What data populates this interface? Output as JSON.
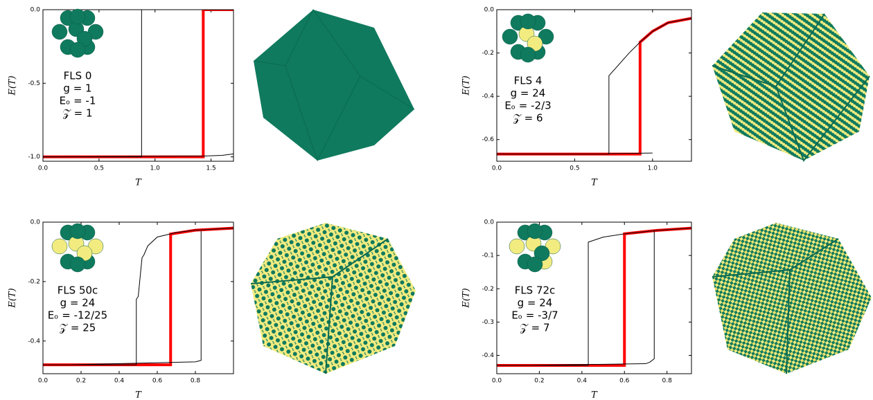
{
  "chart_data": [
    {
      "type": "line",
      "xlabel": "T",
      "ylabel": "E(T)",
      "xlim": [
        0,
        1.7
      ],
      "ylim": [
        -1.03,
        0
      ],
      "xticks": [
        {
          "value": 0,
          "label": "0.0"
        },
        0.5,
        {
          "value": 1,
          "label": "1.0"
        },
        1.5
      ],
      "yticks": [
        {
          "value": -1,
          "label": "-1.0"
        },
        -0.5,
        {
          "value": 0,
          "label": "0.0"
        }
      ],
      "annotations": [
        "FLS 0",
        "g = 1",
        "Eₒ = -1",
        "𝒵 = 1"
      ],
      "series": [
        {
          "color": "#ff0000",
          "x": [
            0,
            1.43,
            1.43,
            1.7
          ],
          "values": [
            -1,
            -1,
            0,
            0
          ]
        },
        {
          "color": "#000000",
          "x": [
            0,
            0.88,
            0.88,
            1.7
          ],
          "values": [
            -1,
            -1,
            0,
            0
          ]
        },
        {
          "color": "#000000",
          "x": [
            0,
            1.43,
            1.6,
            1.7
          ],
          "values": [
            -1,
            -0.995,
            -0.99,
            -0.98
          ]
        }
      ]
    },
    {
      "type": "line",
      "xlabel": "T",
      "ylabel": "E(T)",
      "xlim": [
        0,
        1.25
      ],
      "ylim": [
        -0.7,
        0
      ],
      "xticks": [
        {
          "value": 0,
          "label": "0.0"
        },
        0.5,
        {
          "value": 1,
          "label": "1.0"
        }
      ],
      "yticks": [
        -0.6,
        -0.4,
        -0.2,
        {
          "value": 0,
          "label": "0.0"
        }
      ],
      "annotations": [
        "FLS 4",
        "g = 24",
        "Eₒ = -2/3",
        "𝒵 = 6"
      ],
      "series": [
        {
          "color": "#ff0000",
          "x": [
            0,
            0.92,
            0.92,
            1.0,
            1.1,
            1.25
          ],
          "values": [
            -0.667,
            -0.667,
            -0.15,
            -0.1,
            -0.06,
            -0.04
          ]
        },
        {
          "color": "#000000",
          "x": [
            0,
            0.72,
            0.72,
            0.85,
            0.92,
            1.0,
            1.1,
            1.25
          ],
          "values": [
            -0.667,
            -0.667,
            -0.305,
            -0.2,
            -0.15,
            -0.1,
            -0.06,
            -0.04
          ]
        },
        {
          "color": "#000000",
          "x": [
            0.72,
            1.0
          ],
          "values": [
            -0.665,
            -0.662
          ]
        }
      ]
    },
    {
      "type": "line",
      "xlabel": "T",
      "ylabel": "E(T)",
      "xlim": [
        0,
        1.0
      ],
      "ylim": [
        -0.51,
        0
      ],
      "xticks": [
        {
          "value": 0,
          "label": "0.0"
        },
        0.2,
        0.4,
        0.6,
        0.8
      ],
      "yticks": [
        -0.4,
        -0.2,
        {
          "value": 0,
          "label": "0.0"
        }
      ],
      "annotations": [
        "FLS 50c",
        "g = 24",
        "Eₒ = -12/25",
        "𝒵 = 25"
      ],
      "series": [
        {
          "color": "#ff0000",
          "x": [
            0,
            0.67,
            0.67,
            0.8,
            1.0
          ],
          "values": [
            -0.48,
            -0.48,
            -0.04,
            -0.027,
            -0.02
          ]
        },
        {
          "color": "#000000",
          "x": [
            0,
            0.49,
            0.49,
            0.5,
            0.52,
            0.53,
            0.55,
            0.6,
            0.7,
            0.8,
            1.0
          ],
          "values": [
            -0.48,
            -0.48,
            -0.26,
            -0.25,
            -0.12,
            -0.11,
            -0.08,
            -0.05,
            -0.035,
            -0.027,
            -0.02
          ]
        },
        {
          "color": "#000000",
          "x": [
            0.15,
            0.8,
            0.83,
            0.83
          ],
          "values": [
            -0.48,
            -0.47,
            -0.465,
            -0.03
          ]
        }
      ]
    },
    {
      "type": "line",
      "xlabel": "T",
      "ylabel": "E(T)",
      "xlim": [
        0,
        0.915
      ],
      "ylim": [
        -0.455,
        0
      ],
      "xticks": [
        {
          "value": 0,
          "label": "0.0"
        },
        0.2,
        0.4,
        0.6,
        0.8
      ],
      "yticks": [
        -0.4,
        -0.3,
        -0.2,
        -0.1,
        {
          "value": 0,
          "label": "0.0"
        }
      ],
      "annotations": [
        "FLS 72c",
        "g = 24",
        "Eₒ = -3/7",
        "𝒵 = 7"
      ],
      "series": [
        {
          "color": "#ff0000",
          "x": [
            0,
            0.6,
            0.6,
            0.75,
            0.915
          ],
          "values": [
            -0.43,
            -0.43,
            -0.035,
            -0.025,
            -0.018
          ]
        },
        {
          "color": "#000000",
          "x": [
            0,
            0.43,
            0.43,
            0.5,
            0.6,
            0.75,
            0.915
          ],
          "values": [
            -0.43,
            -0.43,
            -0.06,
            -0.045,
            -0.035,
            -0.025,
            -0.018
          ]
        },
        {
          "color": "#000000",
          "x": [
            0.15,
            0.7,
            0.72,
            0.74,
            0.74
          ],
          "values": [
            -0.43,
            -0.425,
            -0.42,
            -0.41,
            -0.025
          ]
        }
      ]
    }
  ]
}
